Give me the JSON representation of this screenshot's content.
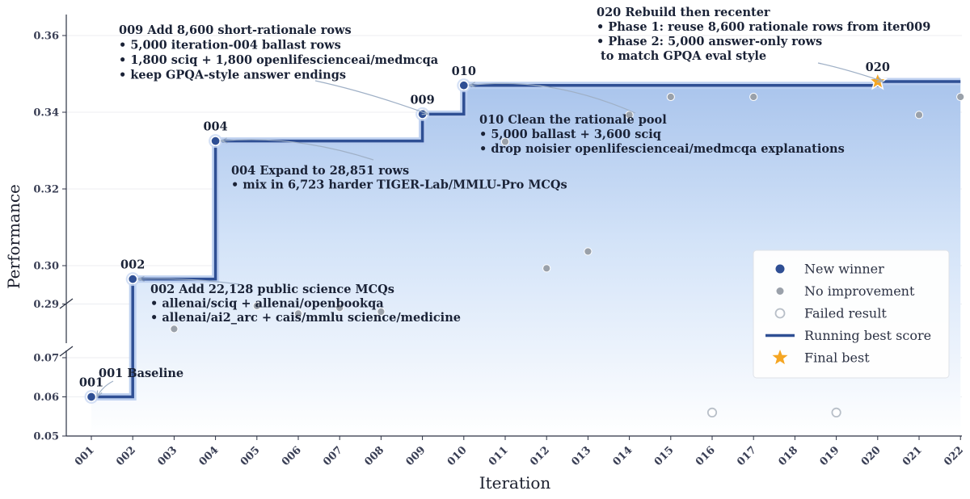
{
  "chart_data": {
    "type": "step-line-scatter",
    "xlabel": "Iteration",
    "ylabel": "Performance",
    "categories": [
      "001",
      "002",
      "003",
      "004",
      "005",
      "006",
      "007",
      "008",
      "009",
      "010",
      "011",
      "012",
      "013",
      "014",
      "015",
      "016",
      "017",
      "018",
      "019",
      "020",
      "021",
      "022"
    ],
    "y_axis": {
      "broken": true,
      "segments": [
        {
          "range": [
            0.05,
            0.07
          ],
          "ticks": [
            0.05,
            0.06,
            0.07
          ]
        },
        {
          "range": [
            0.288,
            0.365
          ],
          "ticks": [
            0.29,
            0.3,
            0.32,
            0.34,
            0.36
          ]
        }
      ]
    },
    "grid": "horizontal",
    "legend_position": "center-right",
    "series": [
      {
        "name": "New winner",
        "color": "#2f4f94",
        "points": [
          [
            "001",
            0.06
          ],
          [
            "002",
            0.2965
          ],
          [
            "004",
            0.3325
          ],
          [
            "009",
            0.3395
          ],
          [
            "010",
            0.347
          ]
        ]
      },
      {
        "name": "No improvement",
        "color": "#9aa1aa",
        "points": [
          [
            "003",
            0.2835
          ],
          [
            "005",
            0.2895
          ],
          [
            "006",
            0.2875
          ],
          [
            "007",
            0.289
          ],
          [
            "008",
            0.288
          ],
          [
            "011",
            0.3323
          ],
          [
            "012",
            0.2993
          ],
          [
            "013",
            0.3037
          ],
          [
            "014",
            0.3393
          ],
          [
            "015",
            0.344
          ],
          [
            "017",
            0.344
          ],
          [
            "021",
            0.3393
          ],
          [
            "022",
            0.344
          ]
        ]
      },
      {
        "name": "Failed result",
        "color": "#b8bfc8",
        "points": [
          [
            "016",
            0.056
          ],
          [
            "019",
            0.056
          ]
        ]
      },
      {
        "name": "Running best score",
        "color": "#2f4f94",
        "points": [
          [
            "001",
            0.06
          ],
          [
            "002",
            0.2965
          ],
          [
            "004",
            0.3325
          ],
          [
            "009",
            0.3395
          ],
          [
            "010",
            0.347
          ],
          [
            "020",
            0.348
          ],
          [
            "022",
            0.348
          ]
        ]
      },
      {
        "name": "Final best",
        "color": "#f5a623",
        "points": [
          [
            "020",
            0.348
          ]
        ]
      }
    ],
    "point_labels": [
      {
        "x": "001",
        "y": 0.06,
        "text": "001"
      },
      {
        "x": "002",
        "y": 0.2965,
        "text": "002"
      },
      {
        "x": "004",
        "y": 0.3325,
        "text": "004"
      },
      {
        "x": "009",
        "y": 0.3395,
        "text": "009"
      },
      {
        "x": "010",
        "y": 0.347,
        "text": "010"
      },
      {
        "x": "020",
        "y": 0.348,
        "text": "020"
      }
    ],
    "annotations": [
      {
        "target": [
          "001",
          0.06
        ],
        "lines": [
          "001 Baseline"
        ]
      },
      {
        "target": [
          "002",
          0.2965
        ],
        "lines": [
          "002 Add 22,128 public science MCQs",
          "• allenai/sciq + allenai/openbookqa",
          "• allenai/ai2_arc + cais/mmlu science/medicine"
        ]
      },
      {
        "target": [
          "004",
          0.3325
        ],
        "lines": [
          "004 Expand to 28,851 rows",
          "• mix in 6,723 harder TIGER-Lab/MMLU-Pro MCQs"
        ]
      },
      {
        "target": [
          "009",
          0.3395
        ],
        "lines": [
          "009 Add 8,600 short-rationale rows",
          "• 5,000 iteration-004 ballast rows",
          "• 1,800 sciq + 1,800 openlifescienceai/medmcqa",
          "• keep GPQA-style answer endings"
        ]
      },
      {
        "target": [
          "010",
          0.347
        ],
        "lines": [
          "010 Clean the rationale pool",
          "• 5,000 ballast + 3,600 sciq",
          "• drop noisier openlifescienceai/medmcqa explanations"
        ]
      },
      {
        "target": [
          "020",
          0.348
        ],
        "lines": [
          "020 Rebuild then recenter",
          "• Phase 1: reuse 8,600 rationale rows from iter009",
          "• Phase 2: 5,000 answer-only rows",
          "  to match GPQA eval style"
        ]
      }
    ]
  }
}
